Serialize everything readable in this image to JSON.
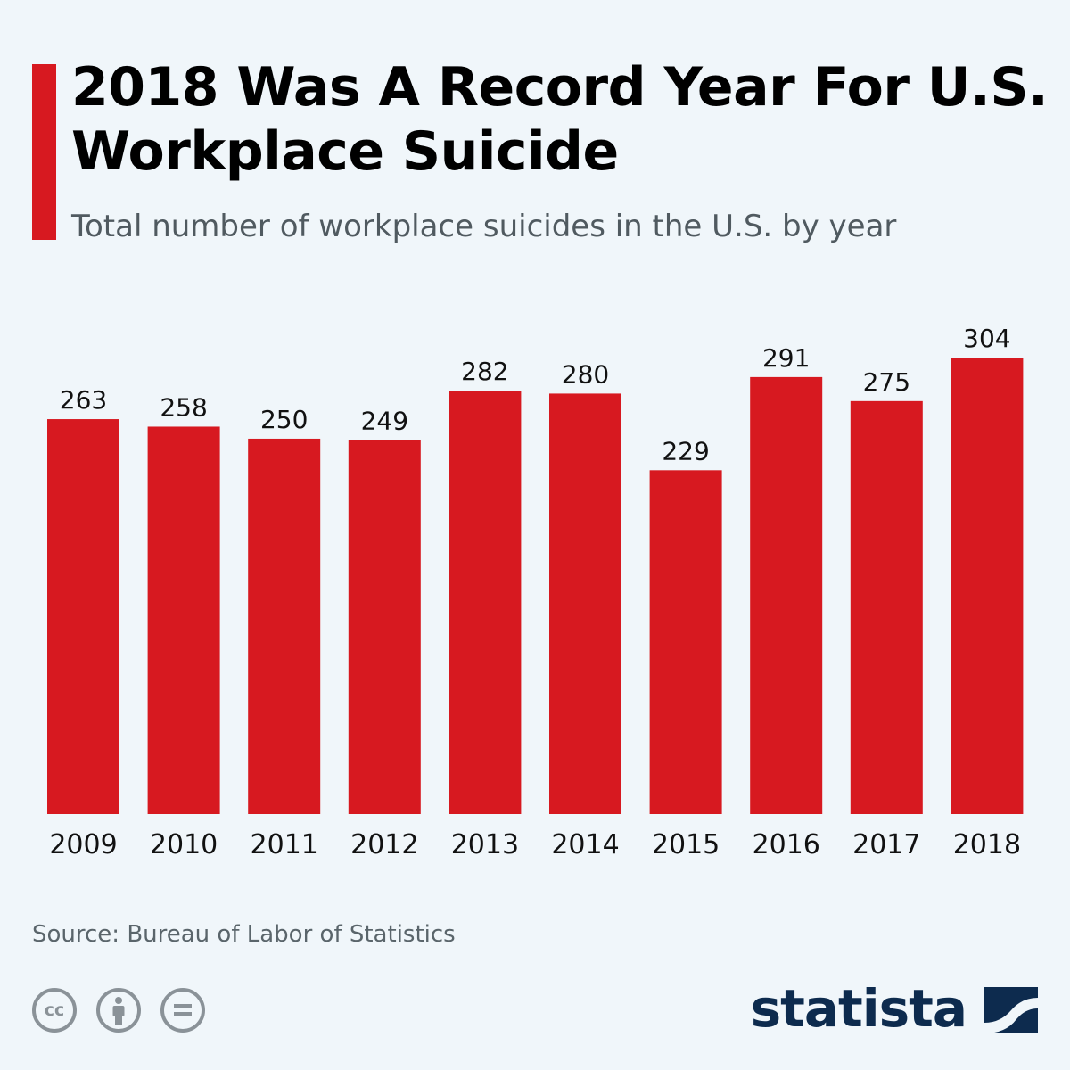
{
  "header": {
    "title": "2018 Was A Record Year For U.S. Workplace Suicide",
    "subtitle": "Total number of workplace suicides in the U.S. by year"
  },
  "footer": {
    "source": "Source: Bureau of Labor of Statistics",
    "brand": "statista",
    "license_icons": [
      "creative-commons-icon",
      "attribution-icon",
      "no-derivatives-icon"
    ]
  },
  "colors": {
    "accent": "#d71920",
    "bar": "#d71920",
    "background": "#f0f6fa",
    "brand": "#0d2b4e"
  },
  "chart_data": {
    "type": "bar",
    "categories": [
      "2009",
      "2010",
      "2011",
      "2012",
      "2013",
      "2014",
      "2015",
      "2016",
      "2017",
      "2018"
    ],
    "values": [
      263,
      258,
      250,
      249,
      282,
      280,
      229,
      291,
      275,
      304
    ],
    "title": "2018 Was A Record Year For U.S. Workplace Suicide",
    "subtitle": "Total number of workplace suicides in the U.S. by year",
    "xlabel": "",
    "ylabel": "",
    "ylim": [
      0,
      304
    ],
    "grid": false,
    "data_labels": true
  }
}
